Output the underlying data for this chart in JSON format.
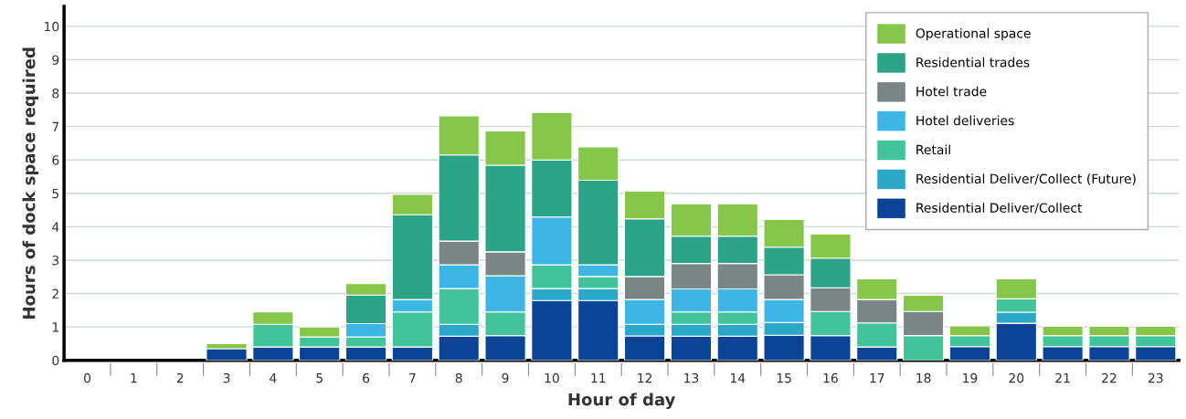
{
  "chart_data": {
    "type": "bar",
    "stacked": true,
    "xlabel": "Hour of day",
    "ylabel": "Hours of dock space required",
    "categories": [
      "0",
      "1",
      "2",
      "3",
      "4",
      "5",
      "6",
      "7",
      "8",
      "9",
      "10",
      "11",
      "12",
      "13",
      "14",
      "15",
      "16",
      "17",
      "18",
      "19",
      "20",
      "21",
      "22",
      "23"
    ],
    "series": [
      {
        "name": "Residential Deliver/Collect",
        "color": "#0b4396",
        "values": [
          0,
          0,
          0,
          0.35,
          0.4,
          0.4,
          0.4,
          0.4,
          0.72,
          0.74,
          1.79,
          1.79,
          0.73,
          0.72,
          0.72,
          0.75,
          0.74,
          0.4,
          0,
          0.41,
          1.11,
          0.41,
          0.41,
          0.41
        ]
      },
      {
        "name": "Residential Deliver/Collect (Future)",
        "color": "#2ba8c8",
        "values": [
          0,
          0,
          0,
          0,
          0,
          0,
          0,
          0,
          0.36,
          0,
          0.36,
          0.36,
          0.35,
          0.36,
          0.36,
          0.38,
          0,
          0,
          0,
          0,
          0.33,
          0,
          0,
          0
        ]
      },
      {
        "name": "Retail",
        "color": "#42c39a",
        "values": [
          0,
          0,
          0,
          0,
          0.68,
          0.3,
          0.3,
          1.05,
          1.07,
          0.71,
          0.71,
          0.36,
          0,
          0.37,
          0.37,
          0,
          0.72,
          0.72,
          0.74,
          0.33,
          0.4,
          0.33,
          0.33,
          0.33
        ]
      },
      {
        "name": "Hotel deliveries",
        "color": "#3db6e6",
        "values": [
          0,
          0,
          0,
          0,
          0,
          0,
          0.4,
          0.37,
          0.71,
          1.08,
          1.43,
          0.35,
          0.74,
          0.69,
          0.69,
          0.69,
          0,
          0,
          0,
          0,
          0,
          0,
          0,
          0
        ]
      },
      {
        "name": "Hotel trade",
        "color": "#7a8585",
        "values": [
          0,
          0,
          0,
          0,
          0,
          0,
          0,
          0,
          0.71,
          0.72,
          0,
          0,
          0.69,
          0.76,
          0.76,
          0.74,
          0.71,
          0.7,
          0.72,
          0,
          0,
          0,
          0,
          0
        ]
      },
      {
        "name": "Residential trades",
        "color": "#2aa387",
        "values": [
          0,
          0,
          0,
          0,
          0,
          0,
          0.85,
          2.54,
          2.58,
          2.59,
          1.71,
          2.53,
          1.73,
          0.82,
          0.82,
          0.83,
          0.89,
          0,
          0,
          0,
          0,
          0,
          0,
          0
        ]
      },
      {
        "name": "Operational space",
        "color": "#86c64b",
        "values": [
          0,
          0,
          0,
          0.15,
          0.37,
          0.3,
          0.35,
          0.61,
          1.17,
          1.03,
          1.42,
          1.0,
          0.83,
          0.97,
          0.97,
          0.83,
          0.72,
          0.62,
          0.49,
          0.29,
          0.6,
          0.28,
          0.28,
          0.28
        ]
      }
    ],
    "ylim": [
      0,
      10.6
    ],
    "yticks": [
      0,
      1,
      2,
      3,
      4,
      5,
      6,
      7,
      8,
      9,
      10
    ],
    "grid": "y",
    "legend": "top right"
  }
}
